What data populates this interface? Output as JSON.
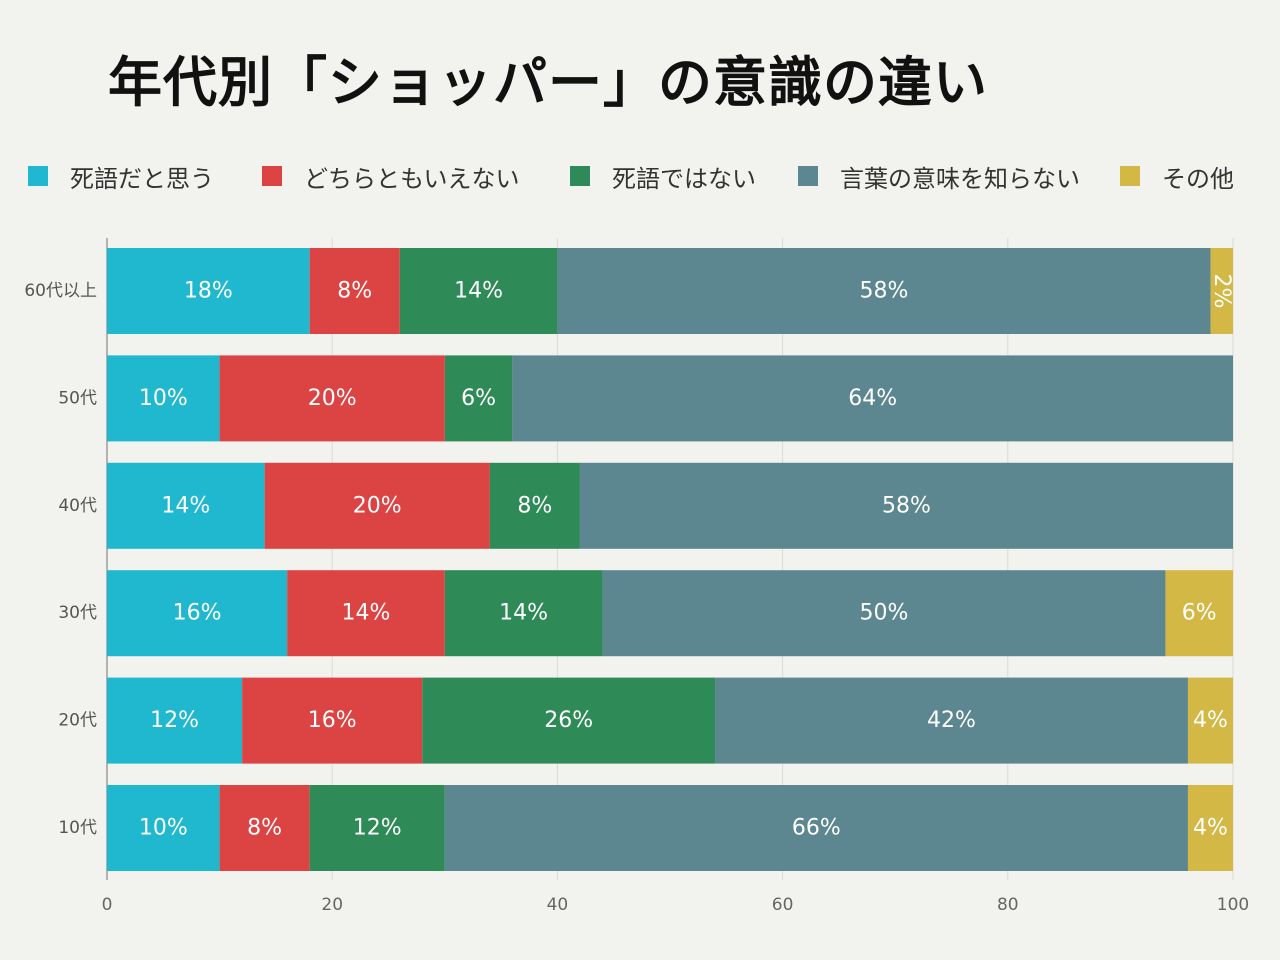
{
  "page": {
    "title": "年代別「ショッパー」の意識の違い"
  },
  "chart_data": {
    "type": "bar",
    "orientation": "horizontal",
    "stacked": true,
    "title": "年代別「ショッパー」の意識の違い",
    "xlabel": "",
    "ylabel": "",
    "xlim": [
      0,
      100
    ],
    "xticks": [
      0,
      20,
      40,
      60,
      80,
      100
    ],
    "grid": true,
    "legend_position": "top",
    "categories": [
      "60代以上",
      "50代",
      "40代",
      "30代",
      "20代",
      "10代"
    ],
    "series": [
      {
        "name": "死語だと思う",
        "color": "#1fb8cf",
        "values": [
          18,
          10,
          14,
          16,
          12,
          10
        ]
      },
      {
        "name": "どちらともいえない",
        "color": "#dc4343",
        "values": [
          8,
          20,
          20,
          14,
          16,
          8
        ]
      },
      {
        "name": "死語ではない",
        "color": "#2e8a57",
        "values": [
          14,
          6,
          8,
          14,
          26,
          12
        ]
      },
      {
        "name": "言葉の意味を知らない",
        "color": "#5c8690",
        "values": [
          58,
          64,
          58,
          50,
          42,
          66
        ]
      },
      {
        "name": "その他",
        "color": "#d4b845",
        "values": [
          2,
          0,
          0,
          6,
          4,
          4
        ]
      }
    ]
  }
}
